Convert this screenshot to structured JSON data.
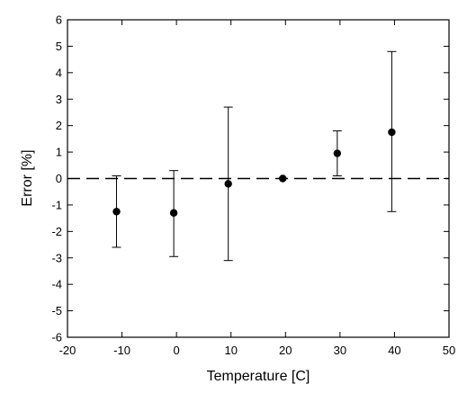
{
  "chart_data": {
    "type": "scatter",
    "title": "",
    "xlabel": "Temperature [C]",
    "ylabel": "Error [%]",
    "xlim": [
      -20,
      50
    ],
    "ylim": [
      -6,
      6
    ],
    "x_ticks": [
      "-20",
      "-10",
      "0",
      "10",
      "20",
      "30",
      "40",
      "50"
    ],
    "y_ticks": [
      "6",
      "5",
      "4",
      "3",
      "2",
      "1",
      "0",
      "-1",
      "-2",
      "-3",
      "-4",
      "-5",
      "-6"
    ],
    "grid": false,
    "reference_line": {
      "y": 0,
      "style": "dashed"
    },
    "series": [
      {
        "marker": "filled-circle",
        "points": [
          {
            "x": -11,
            "y": -1.25,
            "y_low": -2.6,
            "y_high": 0.1
          },
          {
            "x": -0.5,
            "y": -1.3,
            "y_low": -2.95,
            "y_high": 0.3
          },
          {
            "x": 9.5,
            "y": -0.2,
            "y_low": -3.1,
            "y_high": 2.7
          },
          {
            "x": 19.5,
            "y": 0.0,
            "y_low": 0.0,
            "y_high": 0.0
          },
          {
            "x": 29.5,
            "y": 0.95,
            "y_low": 0.1,
            "y_high": 1.8
          },
          {
            "x": 39.5,
            "y": 1.75,
            "y_low": -1.25,
            "y_high": 4.8
          }
        ]
      }
    ]
  }
}
